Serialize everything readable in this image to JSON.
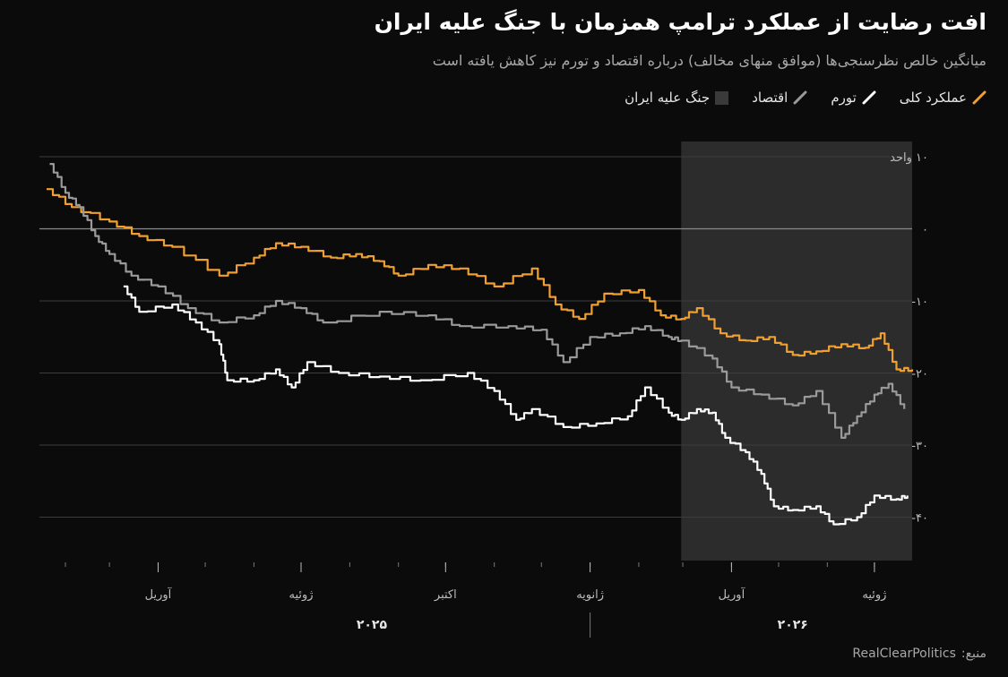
{
  "title": "افت رضایت از عملکرد ترامپ همزمان با جنگ علیه ایران",
  "subtitle": "میانگین خالص نظرسنجی‌ها (موافق منهای مخالف) درباره اقتصاد و تورم نیز کاهش یافته است",
  "legend": {
    "overall": "عملکرد کلی",
    "inflation": "تورم",
    "economy": "اقتصاد",
    "war": "جنگ علیه ایران"
  },
  "source": {
    "label": "منبع:",
    "name": "RealClearPolitics"
  },
  "colors": {
    "overall": "#f0a030",
    "inflation": "#ffffff",
    "economy": "#9a9a9a",
    "war_band": "#2c2c2c",
    "background": "#0b0b0b"
  },
  "chart_data": {
    "type": "line",
    "title": "افت رضایت از عملکرد ترامپ همزمان با جنگ علیه ایران",
    "subtitle": "میانگین خالص نظرسنجی‌ها (موافق منهای مخالف) درباره اقتصاد و تورم نیز کاهش یافته است",
    "xlabel": "",
    "ylabel": "",
    "x_range": [
      "2025-01-20",
      "2026-07-25"
    ],
    "ylim": [
      -45,
      12
    ],
    "y_ticks": [
      {
        "value": 10,
        "label": "۱۰ واحد"
      },
      {
        "value": 0,
        "label": "۰"
      },
      {
        "value": -10,
        "label": "-۱۰"
      },
      {
        "value": -20,
        "label": "-۲۰"
      },
      {
        "value": -30,
        "label": "-۳۰"
      },
      {
        "value": -40,
        "label": "-۴۰"
      }
    ],
    "x_ticks": [
      {
        "date": "2025-04-01",
        "label": "آوریل"
      },
      {
        "date": "2025-07-01",
        "label": "ژوئیه"
      },
      {
        "date": "2025-10-01",
        "label": "اکتبر"
      },
      {
        "date": "2026-01-01",
        "label": "ژانویه"
      },
      {
        "date": "2026-04-01",
        "label": "آوریل"
      },
      {
        "date": "2026-07-01",
        "label": "ژوئیه"
      }
    ],
    "year_labels": [
      {
        "date": "2025-08-15",
        "label": "۲۰۲۵"
      },
      {
        "date": "2026-05-10",
        "label": "۲۰۲۶"
      }
    ],
    "shaded_period": {
      "start": "2026-02-28",
      "end": "2026-07-25",
      "label": "جنگ علیه ایران"
    },
    "grid": true,
    "legend_position": "top-right",
    "series": [
      {
        "name": "عملکرد کلی",
        "key": "overall",
        "points": [
          [
            "2025-01-20",
            5.5
          ],
          [
            "2025-02-05",
            3
          ],
          [
            "2025-03-01",
            1
          ],
          [
            "2025-03-20",
            -1
          ],
          [
            "2025-04-10",
            -2.5
          ],
          [
            "2025-05-10",
            -6.5
          ],
          [
            "2025-06-01",
            -4
          ],
          [
            "2025-06-15",
            -2
          ],
          [
            "2025-07-01",
            -2.5
          ],
          [
            "2025-07-20",
            -4
          ],
          [
            "2025-08-05",
            -3.5
          ],
          [
            "2025-08-20",
            -4.5
          ],
          [
            "2025-09-01",
            -6.5
          ],
          [
            "2025-09-20",
            -5
          ],
          [
            "2025-10-10",
            -5.5
          ],
          [
            "2025-11-01",
            -8
          ],
          [
            "2025-11-25",
            -5.5
          ],
          [
            "2025-12-10",
            -10.5
          ],
          [
            "2025-12-25",
            -12.5
          ],
          [
            "2026-01-10",
            -9
          ],
          [
            "2026-02-01",
            -8.5
          ],
          [
            "2026-02-15",
            -12
          ],
          [
            "2026-02-28",
            -12.5
          ],
          [
            "2026-03-10",
            -11
          ],
          [
            "2026-03-25",
            -14.5
          ],
          [
            "2026-04-10",
            -15.5
          ],
          [
            "2026-04-25",
            -15
          ],
          [
            "2026-05-10",
            -17.5
          ],
          [
            "2026-05-25",
            -17
          ],
          [
            "2026-06-10",
            -16
          ],
          [
            "2026-06-25",
            -16.5
          ],
          [
            "2026-07-05",
            -14.5
          ],
          [
            "2026-07-15",
            -19.5
          ],
          [
            "2026-07-25",
            -19.5
          ]
        ]
      },
      {
        "name": "تورم",
        "key": "inflation",
        "points": [
          [
            "2025-03-10",
            -8
          ],
          [
            "2025-03-20",
            -11.5
          ],
          [
            "2025-04-10",
            -10.5
          ],
          [
            "2025-04-25",
            -13
          ],
          [
            "2025-05-10",
            -16
          ],
          [
            "2025-05-15",
            -21
          ],
          [
            "2025-06-01",
            -21
          ],
          [
            "2025-06-15",
            -19.5
          ],
          [
            "2025-06-25",
            -22
          ],
          [
            "2025-07-05",
            -18.5
          ],
          [
            "2025-07-25",
            -20
          ],
          [
            "2025-08-20",
            -20.5
          ],
          [
            "2025-09-15",
            -21
          ],
          [
            "2025-10-15",
            -20
          ],
          [
            "2025-11-01",
            -22.5
          ],
          [
            "2025-11-15",
            -26.5
          ],
          [
            "2025-11-25",
            -25
          ],
          [
            "2025-12-15",
            -27.5
          ],
          [
            "2026-01-05",
            -27
          ],
          [
            "2026-01-25",
            -26
          ],
          [
            "2026-02-05",
            -22
          ],
          [
            "2026-02-20",
            -25.5
          ],
          [
            "2026-02-28",
            -26.5
          ],
          [
            "2026-03-10",
            -25
          ],
          [
            "2026-03-20",
            -25.5
          ],
          [
            "2026-03-28",
            -29
          ],
          [
            "2026-04-10",
            -31
          ],
          [
            "2026-04-20",
            -34
          ],
          [
            "2026-04-28",
            -38.5
          ],
          [
            "2026-05-10",
            -39
          ],
          [
            "2026-05-25",
            -38.5
          ],
          [
            "2026-06-05",
            -41
          ],
          [
            "2026-06-20",
            -40
          ],
          [
            "2026-07-01",
            -37
          ],
          [
            "2026-07-15",
            -37.5
          ],
          [
            "2026-07-22",
            -37
          ]
        ]
      },
      {
        "name": "اقتصاد",
        "key": "economy",
        "points": [
          [
            "2025-01-22",
            9
          ],
          [
            "2025-02-01",
            5
          ],
          [
            "2025-02-10",
            3
          ],
          [
            "2025-02-20",
            -1
          ],
          [
            "2025-03-01",
            -3.5
          ],
          [
            "2025-03-15",
            -6.5
          ],
          [
            "2025-04-01",
            -8
          ],
          [
            "2025-04-20",
            -11
          ],
          [
            "2025-05-10",
            -13
          ],
          [
            "2025-06-01",
            -12
          ],
          [
            "2025-06-15",
            -10
          ],
          [
            "2025-07-01",
            -11
          ],
          [
            "2025-07-15",
            -13
          ],
          [
            "2025-08-20",
            -11.5
          ],
          [
            "2025-09-20",
            -12
          ],
          [
            "2025-10-10",
            -13.5
          ],
          [
            "2025-11-10",
            -13.5
          ],
          [
            "2025-12-01",
            -14
          ],
          [
            "2025-12-15",
            -18.5
          ],
          [
            "2026-01-01",
            -15
          ],
          [
            "2026-01-20",
            -14.5
          ],
          [
            "2026-02-05",
            -13.5
          ],
          [
            "2026-02-20",
            -15
          ],
          [
            "2026-02-28",
            -15.5
          ],
          [
            "2026-03-20",
            -18
          ],
          [
            "2026-04-01",
            -22
          ],
          [
            "2026-04-20",
            -23
          ],
          [
            "2026-05-10",
            -24.5
          ],
          [
            "2026-05-25",
            -22.5
          ],
          [
            "2026-06-10",
            -29
          ],
          [
            "2026-06-20",
            -26
          ],
          [
            "2026-07-01",
            -23
          ],
          [
            "2026-07-10",
            -21.5
          ],
          [
            "2026-07-20",
            -25
          ]
        ]
      }
    ]
  }
}
